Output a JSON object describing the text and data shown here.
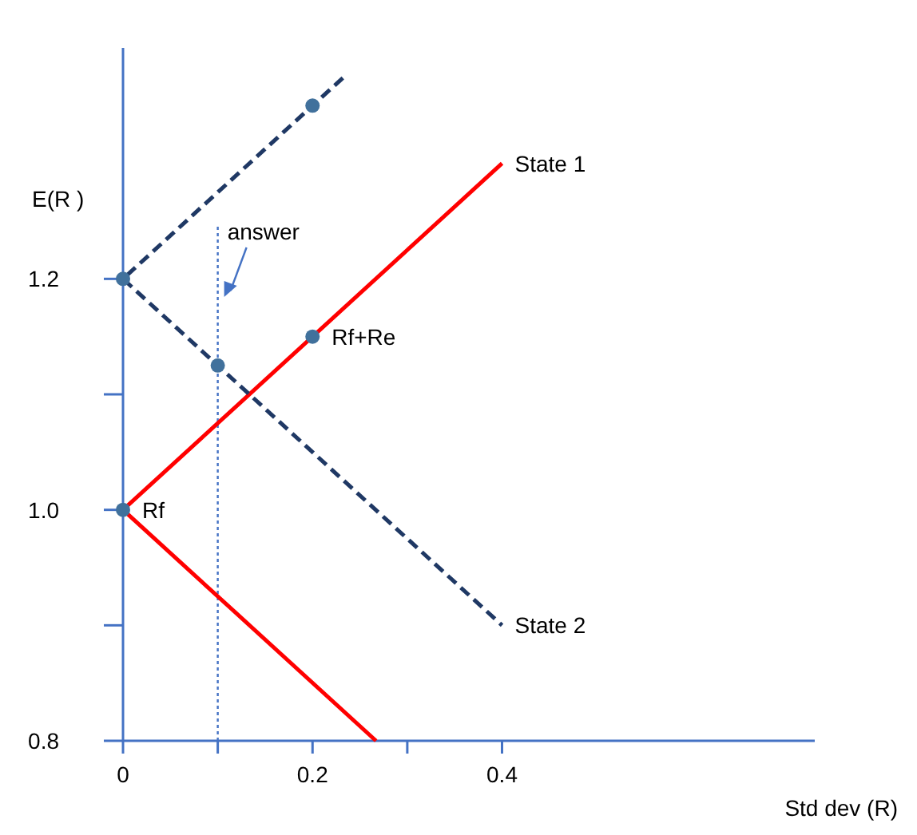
{
  "chart_data": {
    "type": "line",
    "xlabel": "Std dev (R)",
    "ylabel": "E(R )",
    "xlim": [
      0,
      0.73
    ],
    "ylim": [
      0.8,
      1.4
    ],
    "xticks": [
      0,
      {
        "value": 0.1,
        "label": null
      },
      {
        "value": 0.2,
        "label": "0.2"
      },
      {
        "value": 0.3,
        "label": null
      },
      {
        "value": 0.4,
        "label": "0.4"
      }
    ],
    "yticks": [
      {
        "value": 0.8,
        "label": "0.8"
      },
      {
        "value": 0.9,
        "label": null
      },
      {
        "value": 1.0,
        "label": "1.0"
      },
      {
        "value": 1.1,
        "label": null
      },
      {
        "value": 1.2,
        "label": "1.2"
      }
    ],
    "series": [
      {
        "name": "State 1",
        "color": "#ff0000",
        "line_style": "solid",
        "x": [
          0.267,
          0,
          0.4
        ],
        "values": [
          0.8,
          1.0,
          1.3
        ]
      },
      {
        "name": "State 2",
        "color": "#1f3864",
        "line_style": "dashed",
        "x": [
          0.232,
          0,
          0.4
        ],
        "values": [
          1.374,
          1.2,
          0.9
        ]
      },
      {
        "type": "scatter",
        "color": "#41719c",
        "marker": "circle",
        "x": [
          0,
          0,
          0.2,
          0.2
        ],
        "values": [
          1.2,
          1.0,
          1.15,
          1.35
        ]
      },
      {
        "type": "scatter",
        "color": "#41719c",
        "marker": "circle",
        "x": [
          0.1
        ],
        "values": [
          1.125
        ]
      }
    ],
    "ref_lines": [
      {
        "axis": "x",
        "value": 0.1,
        "color": "#4472c4",
        "line_style": "dotted"
      }
    ],
    "annotations": [
      {
        "text": "Rf",
        "x": 0,
        "y": 1.0
      },
      {
        "text": "Rf+Re",
        "x": 0.2,
        "y": 1.15
      },
      "answer"
    ],
    "grid": false
  }
}
